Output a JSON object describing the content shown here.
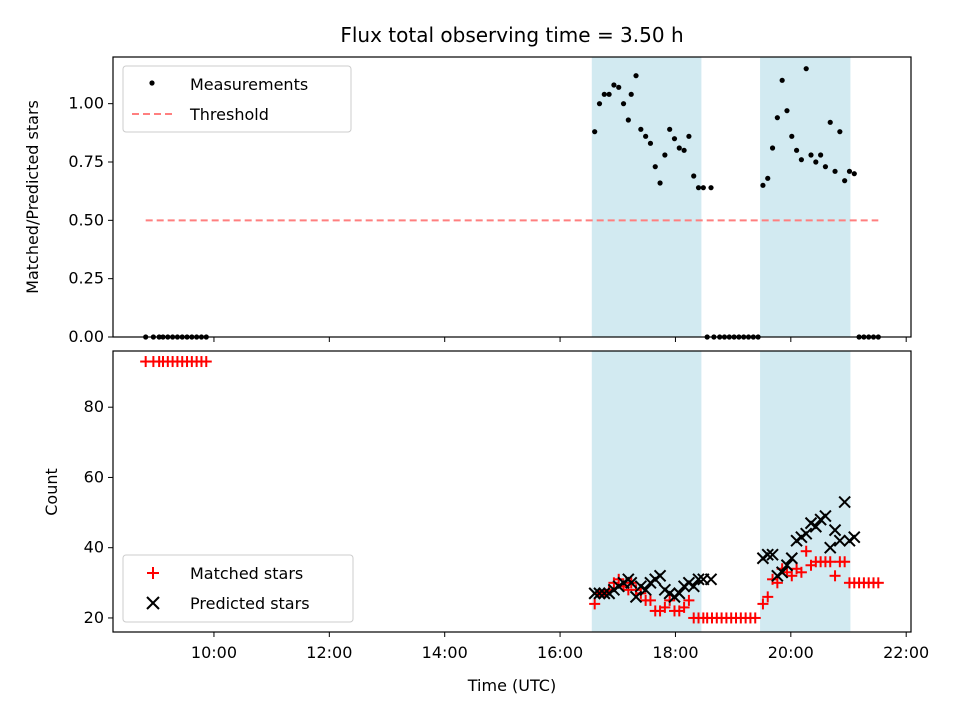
{
  "chart_data": [
    {
      "type": "scatter",
      "title": "Flux total observing time = 3.50 h",
      "ylabel": "Matched/Predicted stars",
      "xlabel": "",
      "xlim": [
        "08:15",
        "22:05"
      ],
      "ylim": [
        0,
        1.2
      ],
      "yticks": [
        0.0,
        0.25,
        0.5,
        0.75,
        1.0
      ],
      "ytick_labels": [
        "0.00",
        "0.25",
        "0.50",
        "0.75",
        "1.00"
      ],
      "x_tick_labels_shown": false,
      "legend_position": "upper-left",
      "shaded_intervals": [
        [
          "16:33",
          "18:27"
        ],
        [
          "19:28",
          "21:02"
        ]
      ],
      "shade_color": "#add8e6",
      "series": [
        {
          "name": "Measurements",
          "marker": "dot",
          "color": "#000000",
          "points": [
            [
              "08:49",
              0
            ],
            [
              "08:57",
              0
            ],
            [
              "09:03",
              0
            ],
            [
              "09:07",
              0
            ],
            [
              "09:12",
              0
            ],
            [
              "09:17",
              0
            ],
            [
              "09:22",
              0
            ],
            [
              "09:27",
              0
            ],
            [
              "09:32",
              0
            ],
            [
              "09:37",
              0
            ],
            [
              "09:42",
              0
            ],
            [
              "09:47",
              0
            ],
            [
              "09:52",
              0
            ],
            [
              "16:36",
              0.88
            ],
            [
              "16:41",
              1.0
            ],
            [
              "16:46",
              1.04
            ],
            [
              "16:51",
              1.04
            ],
            [
              "16:56",
              1.08
            ],
            [
              "17:01",
              1.07
            ],
            [
              "17:06",
              1.0
            ],
            [
              "17:11",
              0.93
            ],
            [
              "17:14",
              1.04
            ],
            [
              "17:19",
              1.12
            ],
            [
              "17:24",
              0.89
            ],
            [
              "17:29",
              0.86
            ],
            [
              "17:34",
              0.83
            ],
            [
              "17:39",
              0.73
            ],
            [
              "17:44",
              0.66
            ],
            [
              "17:49",
              0.78
            ],
            [
              "17:54",
              0.89
            ],
            [
              "17:59",
              0.85
            ],
            [
              "18:04",
              0.81
            ],
            [
              "18:09",
              0.8
            ],
            [
              "18:14",
              0.86
            ],
            [
              "18:19",
              0.69
            ],
            [
              "18:24",
              0.64
            ],
            [
              "18:29",
              0.64
            ],
            [
              "18:37",
              0.64
            ],
            [
              "18:33",
              0
            ],
            [
              "18:40",
              0
            ],
            [
              "18:46",
              0
            ],
            [
              "18:51",
              0
            ],
            [
              "18:56",
              0
            ],
            [
              "19:01",
              0
            ],
            [
              "19:06",
              0
            ],
            [
              "19:11",
              0
            ],
            [
              "19:16",
              0
            ],
            [
              "19:21",
              0
            ],
            [
              "19:26",
              0
            ],
            [
              "19:31",
              0.65
            ],
            [
              "19:36",
              0.68
            ],
            [
              "19:41",
              0.81
            ],
            [
              "19:46",
              0.94
            ],
            [
              "19:51",
              1.1
            ],
            [
              "19:56",
              0.97
            ],
            [
              "20:01",
              0.86
            ],
            [
              "20:06",
              0.8
            ],
            [
              "20:11",
              0.76
            ],
            [
              "20:16",
              1.15
            ],
            [
              "20:21",
              0.78
            ],
            [
              "20:26",
              0.75
            ],
            [
              "20:31",
              0.78
            ],
            [
              "20:36",
              0.73
            ],
            [
              "20:41",
              0.92
            ],
            [
              "20:46",
              0.71
            ],
            [
              "20:51",
              0.88
            ],
            [
              "20:56",
              0.67
            ],
            [
              "21:01",
              0.71
            ],
            [
              "21:06",
              0.7
            ],
            [
              "21:11",
              0
            ],
            [
              "21:16",
              0
            ],
            [
              "21:21",
              0
            ],
            [
              "21:26",
              0
            ],
            [
              "21:31",
              0
            ]
          ]
        },
        {
          "name": "Threshold",
          "line_style": "dashed",
          "color": "#ff7f7f",
          "points": [
            [
              "08:49",
              0.5
            ],
            [
              "21:31",
              0.5
            ]
          ]
        }
      ]
    },
    {
      "type": "scatter",
      "title": "",
      "ylabel": "Count",
      "xlabel": "Time (UTC)",
      "xlim": [
        "08:15",
        "22:05"
      ],
      "ylim": [
        16,
        96
      ],
      "yticks": [
        20,
        40,
        60,
        80
      ],
      "ytick_labels": [
        "20",
        "40",
        "60",
        "80"
      ],
      "xtick_labels": [
        "10:00",
        "12:00",
        "14:00",
        "16:00",
        "18:00",
        "20:00",
        "22:00"
      ],
      "legend_position": "lower-left",
      "shaded_intervals": [
        [
          "16:33",
          "18:27"
        ],
        [
          "19:28",
          "21:02"
        ]
      ],
      "shade_color": "#add8e6",
      "series": [
        {
          "name": "Matched stars",
          "marker": "plus",
          "color": "#ff0000",
          "points": [
            [
              "08:49",
              93
            ],
            [
              "08:57",
              93
            ],
            [
              "09:03",
              93
            ],
            [
              "09:07",
              93
            ],
            [
              "09:12",
              93
            ],
            [
              "09:17",
              93
            ],
            [
              "09:22",
              93
            ],
            [
              "09:27",
              93
            ],
            [
              "09:32",
              93
            ],
            [
              "09:37",
              93
            ],
            [
              "09:42",
              93
            ],
            [
              "09:47",
              93
            ],
            [
              "09:52",
              93
            ],
            [
              "16:36",
              24
            ],
            [
              "16:41",
              27
            ],
            [
              "16:46",
              27
            ],
            [
              "16:51",
              28
            ],
            [
              "16:56",
              30
            ],
            [
              "17:01",
              31
            ],
            [
              "17:06",
              29
            ],
            [
              "17:11",
              28
            ],
            [
              "17:14",
              30
            ],
            [
              "17:19",
              28
            ],
            [
              "17:24",
              27
            ],
            [
              "17:29",
              25
            ],
            [
              "17:34",
              25
            ],
            [
              "17:39",
              22
            ],
            [
              "17:44",
              22
            ],
            [
              "17:49",
              23
            ],
            [
              "17:54",
              25
            ],
            [
              "17:59",
              22
            ],
            [
              "18:04",
              22
            ],
            [
              "18:09",
              23
            ],
            [
              "18:14",
              25
            ],
            [
              "18:19",
              20
            ],
            [
              "18:24",
              20
            ],
            [
              "18:29",
              20
            ],
            [
              "18:33",
              20
            ],
            [
              "18:38",
              20
            ],
            [
              "18:43",
              20
            ],
            [
              "18:48",
              20
            ],
            [
              "18:53",
              20
            ],
            [
              "18:58",
              20
            ],
            [
              "19:03",
              20
            ],
            [
              "19:08",
              20
            ],
            [
              "19:13",
              20
            ],
            [
              "19:18",
              20
            ],
            [
              "19:23",
              20
            ],
            [
              "19:31",
              24
            ],
            [
              "19:36",
              26
            ],
            [
              "19:41",
              31
            ],
            [
              "19:46",
              30
            ],
            [
              "19:51",
              34
            ],
            [
              "19:56",
              33
            ],
            [
              "20:01",
              32
            ],
            [
              "20:06",
              34
            ],
            [
              "20:11",
              33
            ],
            [
              "20:16",
              39
            ],
            [
              "20:21",
              35
            ],
            [
              "20:26",
              36
            ],
            [
              "20:31",
              36
            ],
            [
              "20:36",
              36
            ],
            [
              "20:41",
              36
            ],
            [
              "20:46",
              32
            ],
            [
              "20:51",
              36
            ],
            [
              "20:56",
              36
            ],
            [
              "21:01",
              30
            ],
            [
              "21:06",
              30
            ],
            [
              "21:11",
              30
            ],
            [
              "21:16",
              30
            ],
            [
              "21:21",
              30
            ],
            [
              "21:26",
              30
            ],
            [
              "21:31",
              30
            ]
          ]
        },
        {
          "name": "Predicted stars",
          "marker": "x",
          "color": "#000000",
          "points": [
            [
              "16:36",
              27
            ],
            [
              "16:41",
              27
            ],
            [
              "16:46",
              27
            ],
            [
              "16:51",
              27
            ],
            [
              "16:56",
              28
            ],
            [
              "17:01",
              29
            ],
            [
              "17:06",
              30
            ],
            [
              "17:11",
              31
            ],
            [
              "17:14",
              30
            ],
            [
              "17:19",
              26
            ],
            [
              "17:24",
              29
            ],
            [
              "17:29",
              28
            ],
            [
              "17:34",
              30
            ],
            [
              "17:39",
              31
            ],
            [
              "17:44",
              32
            ],
            [
              "17:49",
              28
            ],
            [
              "17:54",
              27
            ],
            [
              "17:59",
              26
            ],
            [
              "18:04",
              27
            ],
            [
              "18:09",
              29
            ],
            [
              "18:14",
              30
            ],
            [
              "18:19",
              29
            ],
            [
              "18:24",
              31
            ],
            [
              "18:29",
              31
            ],
            [
              "18:37",
              31
            ],
            [
              "19:31",
              37
            ],
            [
              "19:36",
              38
            ],
            [
              "19:41",
              38
            ],
            [
              "19:46",
              32
            ],
            [
              "19:51",
              33
            ],
            [
              "19:56",
              35
            ],
            [
              "20:01",
              37
            ],
            [
              "20:06",
              42
            ],
            [
              "20:11",
              43
            ],
            [
              "20:16",
              44
            ],
            [
              "20:21",
              47
            ],
            [
              "20:26",
              46
            ],
            [
              "20:31",
              48
            ],
            [
              "20:36",
              49
            ],
            [
              "20:41",
              40
            ],
            [
              "20:46",
              45
            ],
            [
              "20:51",
              42
            ],
            [
              "20:56",
              53
            ],
            [
              "21:01",
              42
            ],
            [
              "21:06",
              43
            ]
          ]
        }
      ]
    }
  ]
}
